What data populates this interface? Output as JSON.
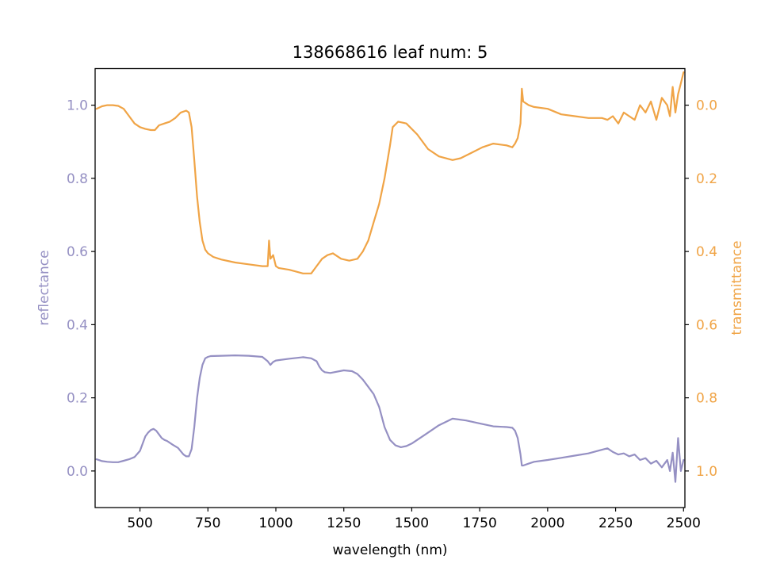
{
  "chart_data": {
    "type": "line",
    "title": "138668616 leaf num: 5",
    "xlabel": "wavelength (nm)",
    "ylabel_left": "reflectance",
    "ylabel_right": "transmittance",
    "xlim": [
      335,
      2505
    ],
    "ylim_left": [
      -0.1,
      1.1
    ],
    "ylim_right": [
      1.1,
      -0.1
    ],
    "right_axis_inverted": true,
    "xticks": [
      500,
      750,
      1000,
      1250,
      1500,
      1750,
      2000,
      2250,
      2500
    ],
    "xtick_labels": [
      "500",
      "750",
      "1000",
      "1250",
      "1500",
      "1750",
      "2000",
      "2250",
      "2500"
    ],
    "yticks_left": [
      0.0,
      0.2,
      0.4,
      0.6,
      0.8,
      1.0
    ],
    "ytick_labels_left": [
      "0.0",
      "0.2",
      "0.4",
      "0.6",
      "0.8",
      "1.0"
    ],
    "yticks_right": [
      0.0,
      0.2,
      0.4,
      0.6,
      0.8,
      1.0
    ],
    "ytick_labels_right": [
      "0.0",
      "0.2",
      "0.4",
      "0.6",
      "0.8",
      "1.0"
    ],
    "grid": false,
    "colors": {
      "reflectance": "#9590c3",
      "transmittance": "#f0a446",
      "axis": "#000000"
    },
    "series": [
      {
        "axis": "left",
        "color": "#9590c3",
        "x": [
          340,
          360,
          380,
          400,
          420,
          440,
          460,
          480,
          500,
          510,
          520,
          530,
          540,
          550,
          560,
          570,
          580,
          590,
          600,
          620,
          640,
          660,
          670,
          680,
          690,
          700,
          710,
          720,
          730,
          740,
          750,
          760,
          800,
          850,
          900,
          950,
          970,
          980,
          990,
          1000,
          1010,
          1050,
          1100,
          1130,
          1150,
          1160,
          1170,
          1180,
          1200,
          1250,
          1280,
          1300,
          1320,
          1340,
          1360,
          1380,
          1400,
          1420,
          1440,
          1460,
          1480,
          1500,
          1550,
          1600,
          1650,
          1700,
          1750,
          1800,
          1850,
          1870,
          1880,
          1890,
          1900,
          1905,
          1910,
          1930,
          1950,
          2000,
          2050,
          2100,
          2150,
          2200,
          2220,
          2240,
          2260,
          2280,
          2300,
          2320,
          2340,
          2360,
          2380,
          2400,
          2420,
          2440,
          2450,
          2460,
          2470,
          2480,
          2490,
          2500
        ],
        "y": [
          0.032,
          0.027,
          0.025,
          0.024,
          0.024,
          0.028,
          0.032,
          0.038,
          0.055,
          0.075,
          0.095,
          0.105,
          0.112,
          0.115,
          0.11,
          0.1,
          0.09,
          0.085,
          0.082,
          0.072,
          0.063,
          0.045,
          0.04,
          0.04,
          0.06,
          0.12,
          0.2,
          0.255,
          0.29,
          0.308,
          0.312,
          0.314,
          0.315,
          0.316,
          0.315,
          0.312,
          0.3,
          0.29,
          0.298,
          0.302,
          0.303,
          0.307,
          0.311,
          0.308,
          0.3,
          0.285,
          0.275,
          0.27,
          0.268,
          0.275,
          0.273,
          0.265,
          0.25,
          0.23,
          0.21,
          0.175,
          0.12,
          0.085,
          0.07,
          0.065,
          0.068,
          0.075,
          0.1,
          0.125,
          0.143,
          0.138,
          0.13,
          0.122,
          0.12,
          0.118,
          0.11,
          0.09,
          0.045,
          0.015,
          0.015,
          0.02,
          0.025,
          0.03,
          0.036,
          0.042,
          0.048,
          0.058,
          0.062,
          0.052,
          0.045,
          0.048,
          0.04,
          0.045,
          0.03,
          0.035,
          0.02,
          0.028,
          0.01,
          0.03,
          0.0,
          0.05,
          -0.03,
          0.09,
          0.0,
          0.03
        ]
      },
      {
        "axis": "right",
        "color": "#f0a446",
        "x": [
          340,
          360,
          380,
          400,
          420,
          440,
          460,
          480,
          500,
          520,
          540,
          555,
          570,
          590,
          610,
          630,
          650,
          670,
          680,
          690,
          700,
          710,
          720,
          730,
          740,
          750,
          770,
          800,
          850,
          900,
          950,
          970,
          975,
          980,
          990,
          1000,
          1010,
          1050,
          1100,
          1130,
          1150,
          1170,
          1190,
          1210,
          1240,
          1270,
          1300,
          1320,
          1340,
          1360,
          1380,
          1400,
          1420,
          1430,
          1450,
          1480,
          1520,
          1560,
          1600,
          1650,
          1680,
          1720,
          1760,
          1800,
          1850,
          1870,
          1880,
          1890,
          1900,
          1905,
          1910,
          1930,
          1950,
          2000,
          2050,
          2100,
          2150,
          2200,
          2220,
          2240,
          2260,
          2280,
          2300,
          2320,
          2340,
          2360,
          2380,
          2400,
          2420,
          2440,
          2450,
          2460,
          2470,
          2480,
          2490,
          2500
        ],
        "y": [
          0.01,
          0.003,
          0.0,
          0.0,
          0.002,
          0.01,
          0.03,
          0.05,
          0.06,
          0.065,
          0.068,
          0.068,
          0.055,
          0.05,
          0.045,
          0.035,
          0.02,
          0.015,
          0.02,
          0.06,
          0.15,
          0.25,
          0.32,
          0.37,
          0.395,
          0.405,
          0.415,
          0.422,
          0.43,
          0.435,
          0.44,
          0.44,
          0.37,
          0.42,
          0.41,
          0.44,
          0.445,
          0.45,
          0.46,
          0.46,
          0.44,
          0.42,
          0.41,
          0.405,
          0.42,
          0.425,
          0.42,
          0.4,
          0.37,
          0.32,
          0.27,
          0.2,
          0.11,
          0.06,
          0.045,
          0.05,
          0.08,
          0.12,
          0.14,
          0.15,
          0.145,
          0.13,
          0.115,
          0.105,
          0.11,
          0.115,
          0.105,
          0.09,
          0.05,
          -0.045,
          -0.01,
          0.0,
          0.005,
          0.01,
          0.025,
          0.03,
          0.035,
          0.035,
          0.04,
          0.03,
          0.05,
          0.02,
          0.03,
          0.04,
          0.0,
          0.02,
          -0.01,
          0.04,
          -0.02,
          0.0,
          0.03,
          -0.05,
          0.02,
          -0.03,
          -0.06,
          -0.09
        ]
      }
    ]
  }
}
